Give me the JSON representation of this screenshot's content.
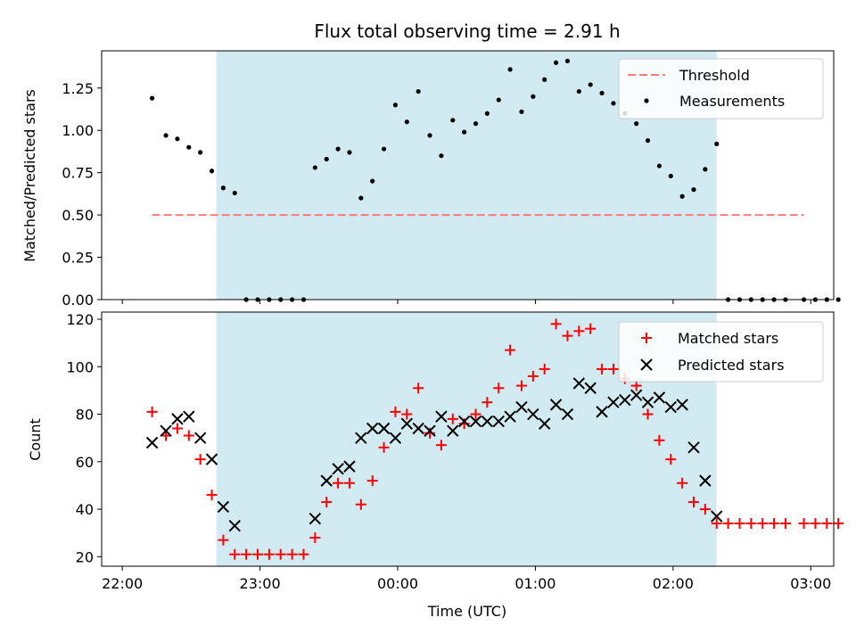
{
  "figure": {
    "title": "Flux total observing time = 2.91 h"
  },
  "chart_data": [
    {
      "type": "scatter",
      "ylabel": "Matched/Predicted stars",
      "ylim": [
        0,
        1.47
      ],
      "xlim_minutes_from_2200": [
        -9,
        310
      ],
      "yticks": [
        0,
        0.25,
        0.5,
        0.75,
        1.0,
        1.25
      ],
      "ytick_labels": [
        "0.00",
        "0.25",
        "0.50",
        "0.75",
        "1.00",
        "1.25"
      ],
      "shaded_interval": [
        "22:41",
        "02:19"
      ],
      "shade_color": "#add8e6",
      "threshold": {
        "name": "Threshold",
        "y": 0.5,
        "x_from": "22:13",
        "x_to": "02:57",
        "color": "#ff7b7b",
        "style": "dashed"
      },
      "series": [
        {
          "name": "Measurements",
          "marker": "dot",
          "color": "#000000",
          "x": [
            "22:13",
            "22:19",
            "22:24",
            "22:29",
            "22:34",
            "22:39",
            "22:44",
            "22:49",
            "22:54",
            "22:59",
            "23:04",
            "23:09",
            "23:14",
            "23:19",
            "23:24",
            "23:29",
            "23:34",
            "23:39",
            "23:44",
            "23:49",
            "23:54",
            "23:59",
            "00:04",
            "00:09",
            "00:14",
            "00:19",
            "00:24",
            "00:29",
            "00:34",
            "00:39",
            "00:44",
            "00:49",
            "00:54",
            "00:59",
            "01:04",
            "01:09",
            "01:14",
            "01:19",
            "01:24",
            "01:29",
            "01:34",
            "01:39",
            "01:44",
            "01:49",
            "01:54",
            "01:59",
            "02:04",
            "02:09",
            "02:14",
            "02:19",
            "02:24",
            "02:29",
            "02:34",
            "02:39",
            "02:44",
            "02:49",
            "02:57",
            "03:02",
            "03:07",
            "03:12"
          ],
          "y": [
            1.19,
            0.97,
            0.95,
            0.9,
            0.87,
            0.76,
            0.66,
            0.63,
            0.0,
            0.0,
            0.0,
            0.0,
            0.0,
            0.0,
            0.78,
            0.83,
            0.89,
            0.87,
            0.6,
            0.7,
            0.89,
            1.15,
            1.05,
            1.23,
            0.97,
            0.85,
            1.06,
            0.99,
            1.04,
            1.1,
            1.18,
            1.36,
            1.11,
            1.2,
            1.3,
            1.4,
            1.41,
            1.23,
            1.27,
            1.22,
            1.16,
            1.1,
            1.04,
            0.94,
            0.79,
            0.73,
            0.61,
            0.65,
            0.77,
            0.92,
            0.0,
            0.0,
            0.0,
            0.0,
            0.0,
            0.0,
            0.0,
            0.0,
            0.0,
            0.0
          ]
        }
      ],
      "legend": {
        "placement": "top-right",
        "entries": [
          "Threshold",
          "Measurements"
        ]
      }
    },
    {
      "type": "scatter",
      "xlabel": "Time (UTC)",
      "ylabel": "Count",
      "ylim": [
        16,
        123
      ],
      "xlim_minutes_from_2200": [
        -9,
        310
      ],
      "yticks": [
        20,
        40,
        60,
        80,
        100,
        120
      ],
      "ytick_labels": [
        "20",
        "40",
        "60",
        "80",
        "100",
        "120"
      ],
      "xticks": [
        "22:00",
        "23:00",
        "00:00",
        "01:00",
        "02:00",
        "03:00"
      ],
      "shaded_interval": [
        "22:41",
        "02:19"
      ],
      "shade_color": "#add8e6",
      "series": [
        {
          "name": "Matched stars",
          "marker": "plus",
          "color": "#ff0000",
          "x": [
            "22:13",
            "22:19",
            "22:24",
            "22:29",
            "22:34",
            "22:39",
            "22:44",
            "22:49",
            "22:54",
            "22:59",
            "23:04",
            "23:09",
            "23:14",
            "23:19",
            "23:24",
            "23:29",
            "23:34",
            "23:39",
            "23:44",
            "23:49",
            "23:54",
            "23:59",
            "00:04",
            "00:09",
            "00:14",
            "00:19",
            "00:24",
            "00:29",
            "00:34",
            "00:39",
            "00:44",
            "00:49",
            "00:54",
            "00:59",
            "01:04",
            "01:09",
            "01:14",
            "01:19",
            "01:24",
            "01:29",
            "01:34",
            "01:39",
            "01:44",
            "01:49",
            "01:54",
            "01:59",
            "02:04",
            "02:09",
            "02:14",
            "02:19",
            "02:24",
            "02:29",
            "02:34",
            "02:39",
            "02:44",
            "02:49",
            "02:57",
            "03:02",
            "03:07",
            "03:12"
          ],
          "y": [
            81,
            71,
            74,
            71,
            61,
            46,
            27,
            21,
            21,
            21,
            21,
            21,
            21,
            21,
            28,
            43,
            51,
            51,
            42,
            52,
            66,
            81,
            80,
            91,
            72,
            67,
            78,
            76,
            80,
            85,
            91,
            107,
            92,
            96,
            99,
            118,
            113,
            115,
            116,
            99,
            99,
            95,
            92,
            80,
            69,
            61,
            51,
            43,
            40,
            34,
            34,
            34,
            34,
            34,
            34,
            34,
            34,
            34,
            34,
            34
          ]
        },
        {
          "name": "Predicted stars",
          "marker": "x",
          "color": "#000000",
          "x": [
            "22:13",
            "22:19",
            "22:24",
            "22:29",
            "22:34",
            "22:39",
            "22:44",
            "22:49",
            "22:54",
            "22:59",
            "23:04",
            "23:09",
            "23:14",
            "23:19",
            "23:24",
            "23:29",
            "23:34",
            "23:39",
            "23:44",
            "23:49",
            "23:54",
            "23:59",
            "00:04",
            "00:09",
            "00:14",
            "00:19",
            "00:24",
            "00:29",
            "00:34",
            "00:39",
            "00:44",
            "00:49",
            "00:54",
            "00:59",
            "01:04",
            "01:09",
            "01:14",
            "01:19",
            "01:24",
            "01:29",
            "01:34",
            "01:39",
            "01:44",
            "01:49",
            "01:54",
            "01:59",
            "02:04",
            "02:09",
            "02:14",
            "02:19"
          ],
          "y": [
            68,
            73,
            78,
            79,
            70,
            61,
            41,
            33,
            null,
            null,
            null,
            null,
            null,
            null,
            36,
            52,
            57,
            58,
            70,
            74,
            74,
            70,
            76,
            74,
            73,
            79,
            73,
            77,
            77,
            77,
            77,
            79,
            83,
            80,
            76,
            84,
            80,
            93,
            91,
            81,
            85,
            86,
            88,
            85,
            87,
            83,
            84,
            66,
            52,
            37
          ]
        }
      ],
      "legend": {
        "placement": "top-right",
        "entries": [
          "Matched stars",
          "Predicted stars"
        ]
      }
    }
  ]
}
